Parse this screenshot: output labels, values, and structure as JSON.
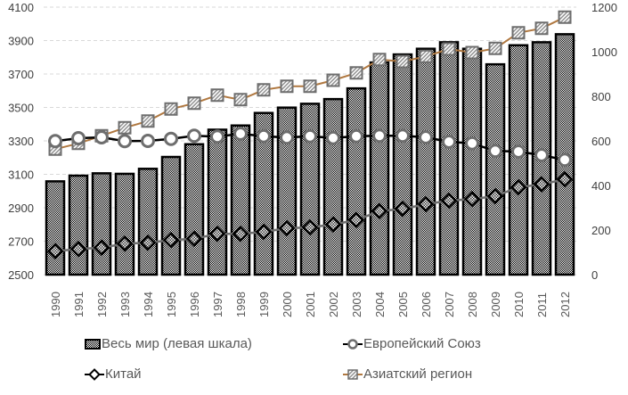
{
  "chart_data": {
    "type": "bar+line",
    "title": "",
    "categories": [
      "1990",
      "1991",
      "1992",
      "1993",
      "1994",
      "1995",
      "1996",
      "1997",
      "1998",
      "1999",
      "2000",
      "2001",
      "2002",
      "2003",
      "2004",
      "2005",
      "2006",
      "2007",
      "2008",
      "2009",
      "2010",
      "2011",
      "2012"
    ],
    "left_axis": {
      "ylim": [
        2500,
        4100
      ],
      "ticks": [
        "2500",
        "2700",
        "2900",
        "3100",
        "3300",
        "3500",
        "3700",
        "3900",
        "4100"
      ]
    },
    "right_axis": {
      "ylim": [
        0,
        1200
      ],
      "ticks": [
        "0",
        "200",
        "400",
        "600",
        "800",
        "1000",
        "1200"
      ]
    },
    "grid": "horizontal dashed",
    "legend_position": "bottom",
    "series": [
      {
        "name": "Весь мир (левая шкала)",
        "type": "bar",
        "axis": "left",
        "values": [
          3058,
          3092,
          3106,
          3103,
          3133,
          3204,
          3280,
          3367,
          3392,
          3467,
          3499,
          3522,
          3550,
          3614,
          3769,
          3817,
          3851,
          3890,
          3851,
          3758,
          3872,
          3890,
          3938
        ]
      },
      {
        "name": "Европейский Союз",
        "type": "line",
        "axis": "right",
        "marker": "circle",
        "values": [
          599,
          612,
          616,
          599,
          600,
          609,
          623,
          619,
          632,
          621,
          615,
          621,
          613,
          621,
          623,
          623,
          616,
          596,
          589,
          555,
          552,
          536,
          515
        ]
      },
      {
        "name": "Китай",
        "type": "line",
        "axis": "right",
        "marker": "diamond",
        "values": [
          105,
          115,
          121,
          139,
          143,
          155,
          161,
          183,
          183,
          192,
          208,
          212,
          225,
          245,
          285,
          295,
          316,
          332,
          339,
          352,
          392,
          405,
          428
        ]
      },
      {
        "name": "Азиатский регион",
        "type": "line",
        "axis": "right",
        "marker": "square",
        "values": [
          563,
          589,
          623,
          659,
          689,
          743,
          769,
          805,
          785,
          829,
          845,
          845,
          872,
          905,
          965,
          956,
          979,
          1012,
          996,
          1015,
          1085,
          1105,
          1155
        ]
      }
    ],
    "colors": {
      "bar_border": "#000000",
      "eu_line": "#000000",
      "eu_marker_stroke": "#6e6e6e",
      "china_line": "#6e6e6e",
      "asia_line": "#b07840",
      "asia_marker_stroke": "#6e6e6e",
      "grid": "#d9d9d9",
      "text": "#595959"
    }
  },
  "legend": {
    "world": "Весь мир (левая шкала)",
    "eu": "Европейский Союз",
    "china": "Китай",
    "asia": "Азиатский регион"
  }
}
